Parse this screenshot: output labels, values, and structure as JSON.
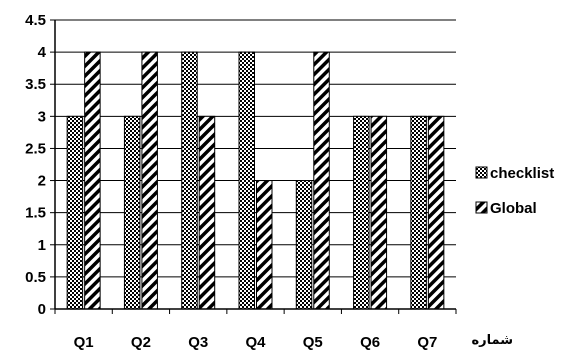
{
  "chart_data": {
    "type": "bar",
    "categories": [
      "Q1",
      "Q2",
      "Q3",
      "Q4",
      "Q5",
      "Q6",
      "Q7"
    ],
    "series": [
      {
        "name": "checklist",
        "values": [
          3,
          3,
          4,
          4,
          2,
          3,
          3
        ],
        "pattern": "crosshatch"
      },
      {
        "name": "Global",
        "values": [
          4,
          4,
          3,
          2,
          4,
          3,
          3
        ],
        "pattern": "diagonal-stripes"
      }
    ],
    "xlabel": "شماره",
    "ylabel": "",
    "ylim": [
      0,
      4.5
    ],
    "yticks": [
      "0",
      "0.5",
      "1",
      "1.5",
      "2",
      "2.5",
      "3",
      "3.5",
      "4",
      "4.5"
    ],
    "grid": true,
    "legend_position": "right",
    "colors": {
      "bar_fill": "#000000",
      "grid": "#000000",
      "background": "#ffffff"
    }
  }
}
